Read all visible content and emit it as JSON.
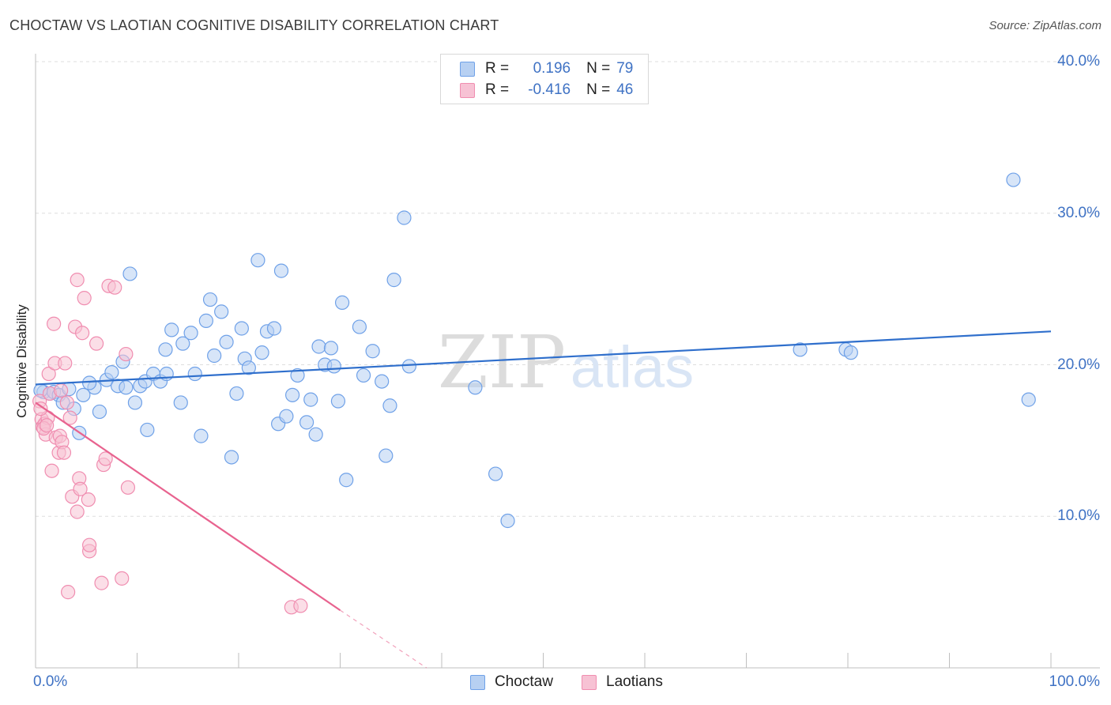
{
  "title": "CHOCTAW VS LAOTIAN COGNITIVE DISABILITY CORRELATION CHART",
  "source": "Source: ZipAtlas.com",
  "watermark": {
    "zip": "ZIP",
    "atlas": "atlas"
  },
  "legend": {
    "r_label": "R =",
    "n_label": "N =",
    "choctaw": {
      "r": "0.196",
      "n": "79"
    },
    "laotians": {
      "r": "-0.416",
      "n": "46"
    }
  },
  "chart_data": {
    "type": "scatter",
    "title": "CHOCTAW VS LAOTIAN COGNITIVE DISABILITY CORRELATION CHART",
    "xlabel": "",
    "ylabel": "Cognitive Disability",
    "xlim": [
      0,
      100
    ],
    "ylim": [
      0,
      40
    ],
    "x_tick_labels": [
      "0.0%",
      "100.0%"
    ],
    "y_ticks": [
      10,
      20,
      30,
      40
    ],
    "y_tick_labels": [
      "10.0%",
      "20.0%",
      "30.0%",
      "40.0%"
    ],
    "grid": true,
    "legend_position": "top-center",
    "series": [
      {
        "name": "Choctaw",
        "color": "#6fa1e8",
        "fill": "#b7d0f2",
        "points": [
          [
            0.8,
            18.2
          ],
          [
            1.4,
            18.1
          ],
          [
            1.8,
            18.2
          ],
          [
            2.3,
            18.0
          ],
          [
            3.3,
            18.4
          ],
          [
            2.7,
            17.5
          ],
          [
            3.8,
            17.1
          ],
          [
            4.3,
            15.5
          ],
          [
            4.7,
            18.0
          ],
          [
            5.8,
            18.5
          ],
          [
            5.3,
            18.8
          ],
          [
            6.3,
            16.9
          ],
          [
            7.0,
            19.0
          ],
          [
            7.5,
            19.5
          ],
          [
            8.1,
            18.6
          ],
          [
            8.6,
            20.2
          ],
          [
            8.9,
            18.5
          ],
          [
            9.3,
            26.0
          ],
          [
            9.8,
            17.5
          ],
          [
            10.3,
            18.6
          ],
          [
            10.8,
            18.9
          ],
          [
            11.0,
            15.7
          ],
          [
            11.6,
            19.4
          ],
          [
            12.3,
            18.9
          ],
          [
            12.8,
            21.0
          ],
          [
            12.9,
            19.4
          ],
          [
            13.4,
            22.3
          ],
          [
            14.3,
            17.5
          ],
          [
            14.5,
            21.4
          ],
          [
            15.3,
            22.1
          ],
          [
            15.7,
            19.4
          ],
          [
            16.3,
            15.3
          ],
          [
            16.8,
            22.9
          ],
          [
            17.2,
            24.3
          ],
          [
            17.6,
            20.6
          ],
          [
            18.3,
            23.5
          ],
          [
            18.8,
            21.5
          ],
          [
            19.3,
            13.9
          ],
          [
            19.8,
            18.1
          ],
          [
            20.3,
            22.4
          ],
          [
            20.6,
            20.4
          ],
          [
            21.0,
            19.8
          ],
          [
            21.9,
            26.9
          ],
          [
            22.3,
            20.8
          ],
          [
            22.8,
            22.2
          ],
          [
            23.5,
            22.4
          ],
          [
            23.9,
            16.1
          ],
          [
            24.2,
            26.2
          ],
          [
            24.7,
            16.6
          ],
          [
            25.3,
            18.0
          ],
          [
            25.8,
            19.3
          ],
          [
            26.7,
            16.2
          ],
          [
            27.1,
            17.7
          ],
          [
            27.6,
            15.4
          ],
          [
            27.9,
            21.2
          ],
          [
            28.5,
            20.0
          ],
          [
            29.1,
            21.1
          ],
          [
            29.4,
            19.9
          ],
          [
            29.8,
            17.6
          ],
          [
            30.2,
            24.1
          ],
          [
            30.6,
            12.4
          ],
          [
            31.9,
            22.5
          ],
          [
            32.3,
            19.3
          ],
          [
            33.2,
            20.9
          ],
          [
            34.1,
            18.9
          ],
          [
            34.5,
            14.0
          ],
          [
            34.9,
            17.3
          ],
          [
            35.3,
            25.6
          ],
          [
            36.3,
            29.7
          ],
          [
            36.8,
            19.9
          ],
          [
            43.3,
            18.5
          ],
          [
            45.3,
            12.8
          ],
          [
            46.5,
            9.7
          ],
          [
            75.3,
            21.0
          ],
          [
            79.8,
            21.0
          ],
          [
            80.3,
            20.8
          ],
          [
            96.3,
            32.2
          ],
          [
            97.8,
            17.7
          ],
          [
            0.5,
            18.3
          ]
        ]
      },
      {
        "name": "Laotians",
        "color": "#f08db0",
        "fill": "#f7c2d4",
        "points": [
          [
            0.4,
            17.6
          ],
          [
            0.6,
            16.4
          ],
          [
            0.7,
            15.9
          ],
          [
            0.9,
            16.1
          ],
          [
            1.0,
            15.4
          ],
          [
            1.2,
            16.5
          ],
          [
            1.4,
            18.1
          ],
          [
            1.3,
            19.4
          ],
          [
            1.6,
            13.0
          ],
          [
            1.8,
            22.7
          ],
          [
            1.9,
            20.1
          ],
          [
            2.0,
            15.2
          ],
          [
            2.3,
            14.2
          ],
          [
            2.5,
            18.3
          ],
          [
            2.4,
            15.3
          ],
          [
            2.6,
            14.9
          ],
          [
            2.8,
            14.2
          ],
          [
            2.9,
            20.1
          ],
          [
            3.1,
            17.5
          ],
          [
            3.2,
            5.0
          ],
          [
            3.4,
            16.5
          ],
          [
            3.6,
            11.3
          ],
          [
            3.9,
            22.5
          ],
          [
            4.1,
            10.3
          ],
          [
            4.1,
            25.6
          ],
          [
            4.3,
            12.5
          ],
          [
            4.4,
            11.8
          ],
          [
            4.6,
            22.1
          ],
          [
            4.8,
            24.4
          ],
          [
            5.2,
            11.1
          ],
          [
            5.3,
            7.7
          ],
          [
            5.3,
            8.1
          ],
          [
            6.0,
            21.4
          ],
          [
            6.5,
            5.6
          ],
          [
            6.7,
            13.4
          ],
          [
            6.9,
            13.8
          ],
          [
            7.2,
            25.2
          ],
          [
            7.8,
            25.1
          ],
          [
            8.5,
            5.9
          ],
          [
            8.9,
            20.7
          ],
          [
            9.1,
            11.9
          ],
          [
            25.2,
            4.0
          ],
          [
            26.1,
            4.1
          ],
          [
            0.5,
            17.1
          ],
          [
            0.8,
            15.8
          ],
          [
            1.1,
            16.0
          ]
        ]
      }
    ],
    "trend_lines": [
      {
        "series": "Choctaw",
        "x": [
          0,
          100
        ],
        "y": [
          18.7,
          22.2
        ]
      },
      {
        "series": "Laotians",
        "x": [
          0,
          30
        ],
        "y": [
          17.5,
          3.8
        ],
        "dashed_extension_to": [
          38.5,
          0
        ]
      }
    ]
  }
}
